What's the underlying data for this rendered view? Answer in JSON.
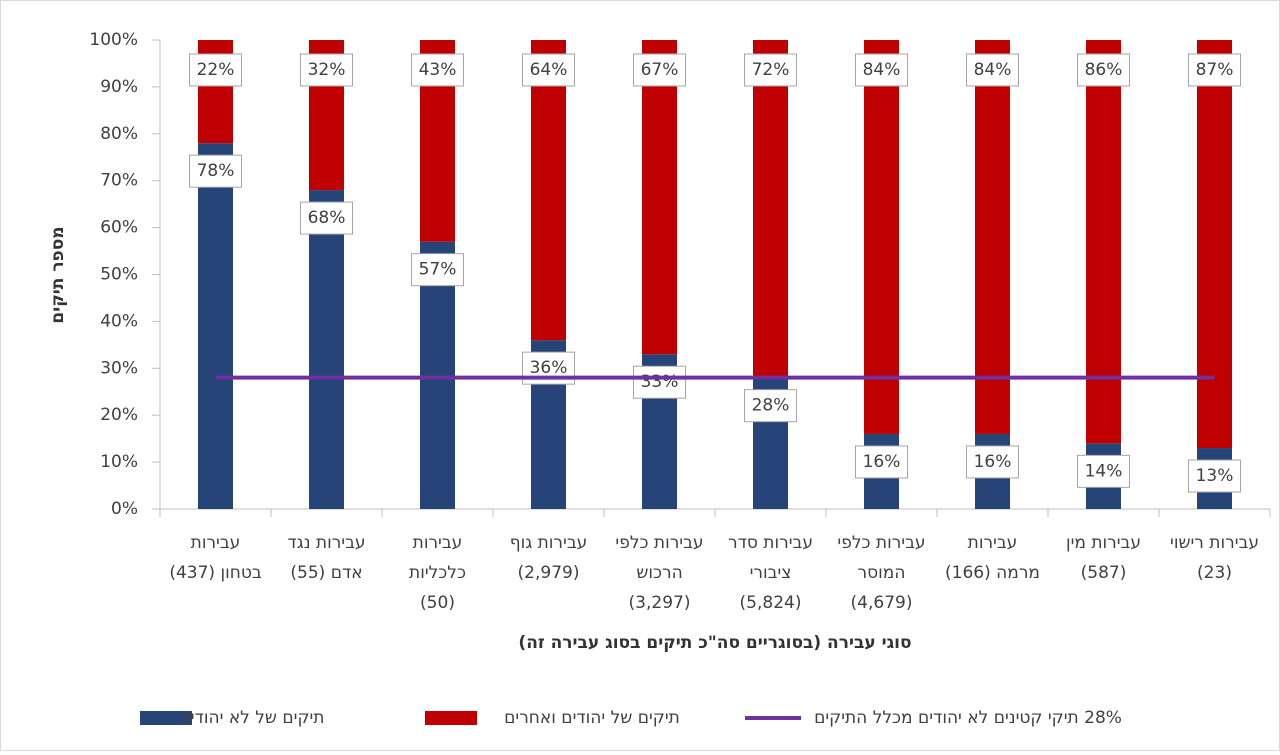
{
  "chart_data": {
    "type": "stacked_bar_line",
    "y_axis_title": "מספר תיקים",
    "x_axis_title": "סוגי עבירה (בסוגריים סה\"כ תיקים בסוג עבירה זה)",
    "categories": [
      [
        "עבירות",
        "בטחון (437)"
      ],
      [
        "עבירות נגד",
        "אדם (55)"
      ],
      [
        "עבירות",
        "כלכליות",
        "(50)"
      ],
      [
        "עבירות גוף",
        "(2,979)"
      ],
      [
        "עבירות כלפי",
        "הרכוש",
        "(3,297)"
      ],
      [
        "עבירות סדר",
        "ציבורי",
        "(5,824)"
      ],
      [
        "עבירות כלפי",
        "המוסר",
        "(4,679)"
      ],
      [
        "עבירות",
        "מרמה (166)"
      ],
      [
        "עבירות מין",
        "(587)"
      ],
      [
        "עבירות רישוי",
        "(23)"
      ]
    ],
    "series": [
      {
        "name": "תיקים של לא יהודים",
        "color": "#264478",
        "values": [
          78,
          68,
          57,
          36,
          33,
          28,
          16,
          16,
          14,
          13
        ],
        "value_labels": [
          "78%",
          "68%",
          "57%",
          "36%",
          "33%",
          "28%",
          "16%",
          "16%",
          "14%",
          "13%"
        ]
      },
      {
        "name": "תיקים של יהודים ואחרים",
        "color": "#c00000",
        "values": [
          22,
          32,
          43,
          64,
          67,
          72,
          84,
          84,
          86,
          87
        ],
        "value_labels": [
          "22%",
          "32%",
          "43%",
          "64%",
          "67%",
          "72%",
          "84%",
          "84%",
          "86%",
          "87%"
        ]
      },
      {
        "name": "28% תיקי קטינים לא יהודים מכלל התיקים",
        "color": "#7030a0",
        "type": "line",
        "values": [
          28,
          28,
          28,
          28,
          28,
          28,
          28,
          28,
          28,
          28
        ]
      }
    ],
    "ylim": [
      0,
      100
    ],
    "yticks": [
      {
        "value": 0,
        "label": "0%"
      },
      {
        "value": 10,
        "label": "10%"
      },
      {
        "value": 20,
        "label": "20%"
      },
      {
        "value": 30,
        "label": "30%"
      },
      {
        "value": 40,
        "label": "40%"
      },
      {
        "value": 50,
        "label": "50%"
      },
      {
        "value": 60,
        "label": "60%"
      },
      {
        "value": 70,
        "label": "70%"
      },
      {
        "value": 80,
        "label": "80%"
      },
      {
        "value": 90,
        "label": "90%"
      },
      {
        "value": 100,
        "label": "100%"
      }
    ]
  }
}
